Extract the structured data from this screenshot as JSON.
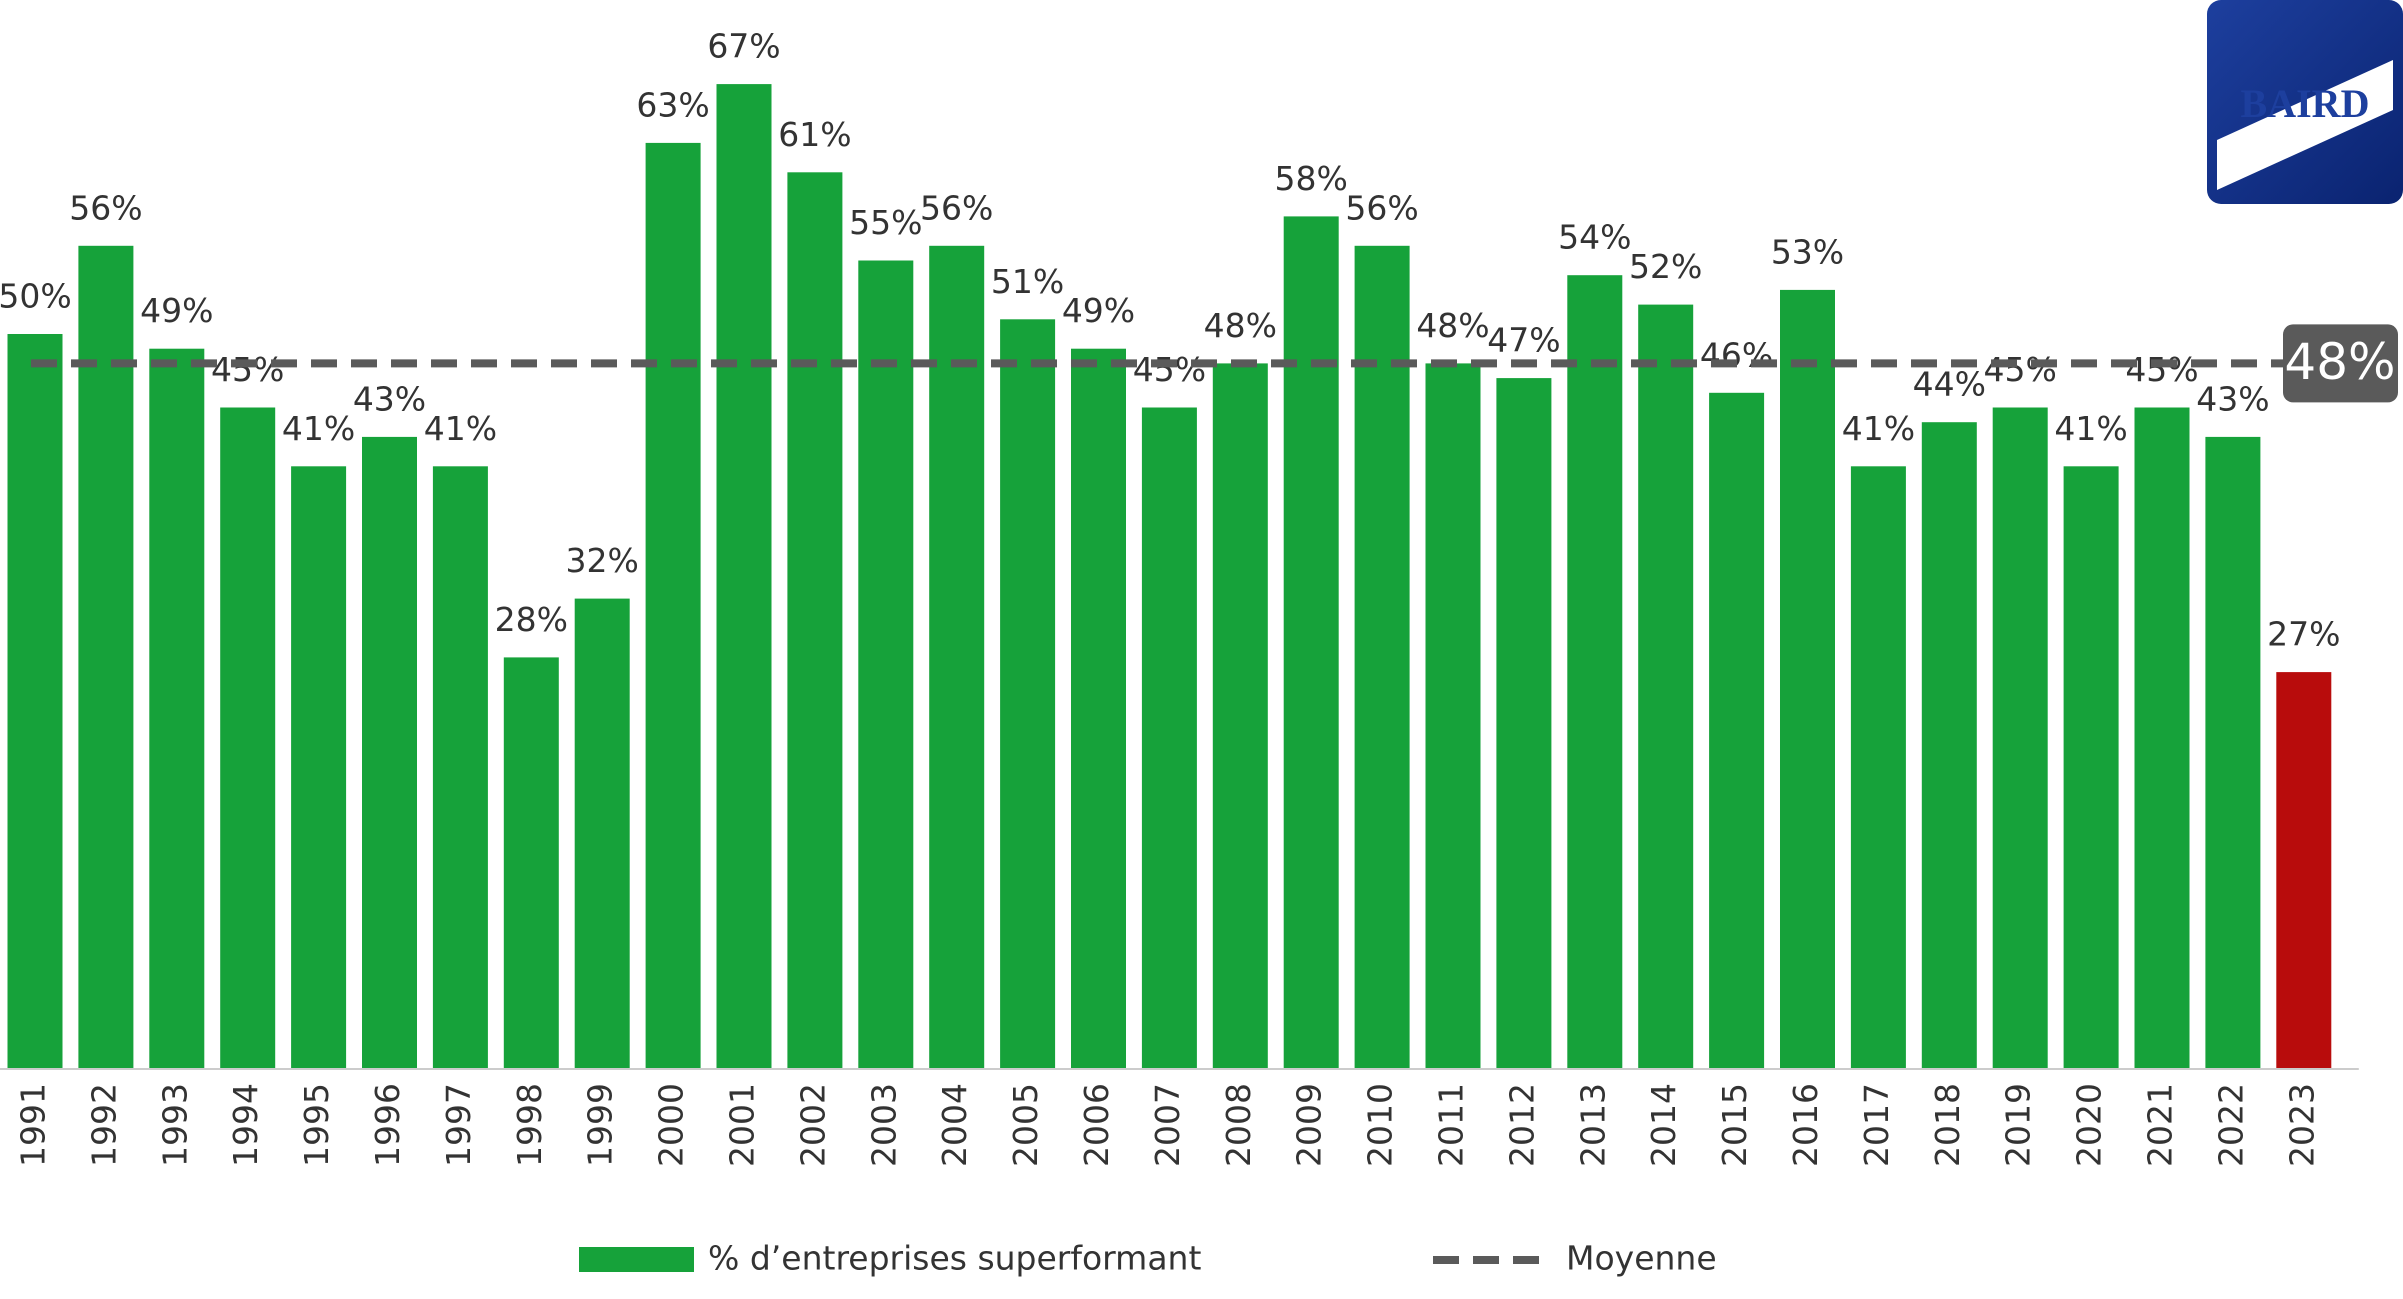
{
  "logo": "BAIRD",
  "chart_data": {
    "type": "bar",
    "categories": [
      "1991",
      "1992",
      "1993",
      "1994",
      "1995",
      "1996",
      "1997",
      "1998",
      "1999",
      "2000",
      "2001",
      "2002",
      "2003",
      "2004",
      "2005",
      "2006",
      "2007",
      "2008",
      "2009",
      "2010",
      "2011",
      "2012",
      "2013",
      "2014",
      "2015",
      "2016",
      "2017",
      "2018",
      "2019",
      "2020",
      "2021",
      "2022",
      "2023"
    ],
    "series": [
      {
        "name": "% d’entreprises superformant",
        "color": "#16a23a",
        "colors": [
          "#16a23a",
          "#16a23a",
          "#16a23a",
          "#16a23a",
          "#16a23a",
          "#16a23a",
          "#16a23a",
          "#16a23a",
          "#16a23a",
          "#16a23a",
          "#16a23a",
          "#16a23a",
          "#16a23a",
          "#16a23a",
          "#16a23a",
          "#16a23a",
          "#16a23a",
          "#16a23a",
          "#16a23a",
          "#16a23a",
          "#16a23a",
          "#16a23a",
          "#16a23a",
          "#16a23a",
          "#16a23a",
          "#16a23a",
          "#16a23a",
          "#16a23a",
          "#16a23a",
          "#16a23a",
          "#16a23a",
          "#16a23a",
          "#b80c0c"
        ],
        "values": [
          50,
          56,
          49,
          45,
          41,
          43,
          41,
          28,
          32,
          63,
          67,
          61,
          55,
          56,
          51,
          49,
          45,
          48,
          58,
          56,
          48,
          47,
          54,
          52,
          46,
          53,
          41,
          44,
          45,
          41,
          45,
          43,
          27
        ],
        "value_labels": [
          "50%",
          "56%",
          "49%",
          "45%",
          "41%",
          "43%",
          "41%",
          "28%",
          "32%",
          "63%",
          "67%",
          "61%",
          "55%",
          "56%",
          "51%",
          "49%",
          "45%",
          "48%",
          "58%",
          "56%",
          "48%",
          "47%",
          "54%",
          "52%",
          "46%",
          "53%",
          "41%",
          "44%",
          "45%",
          "41%",
          "45%",
          "43%",
          "27%"
        ]
      },
      {
        "name": "Moyenne",
        "color": "#5a5a5a",
        "value": 48,
        "value_label": "48%"
      }
    ]
  }
}
